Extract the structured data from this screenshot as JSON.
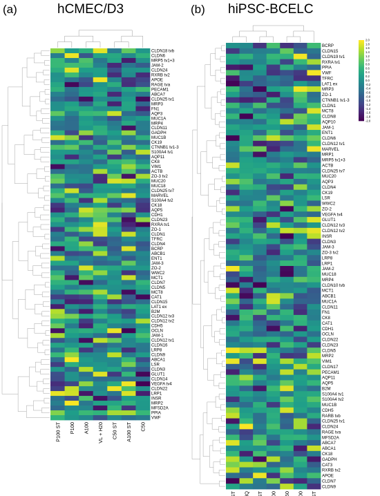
{
  "chart_data": [
    {
      "type": "heatmap",
      "panel_label": "(a)",
      "title": "hCMEC/D3",
      "columns": [
        "P100 ST",
        "P100",
        "A100",
        "VL + H20",
        "C50 ST",
        "A100 ST",
        "C50"
      ],
      "rows": [
        "CLDN18 tvb",
        "CLDN6",
        "MRP5 tv1+3",
        "JAM-2",
        "CLDN24",
        "RXRB tv2",
        "APOE",
        "RAGE tva",
        "PECAM1",
        "ABCA7",
        "CLDN25 tv1",
        "MRP3",
        "FN1",
        "AQP3",
        "MUC1A",
        "MRP4",
        "CLDN11",
        "GADPH",
        "MUC1B",
        "CK19",
        "CTNNB1 tv1-3",
        "S100A4 tv1",
        "AQP11",
        "CK8",
        "VIM1",
        "ACTB",
        "ZO-3 tv2",
        "MUC20",
        "MUC18",
        "CLDN25 tv7",
        "MARVEL",
        "S100A4 tv2",
        "CK18",
        "AQP5",
        "CDH1",
        "CLDN23",
        "RXRA tv1",
        "ZO-1",
        "CLDN1",
        "TFRC",
        "CLDN4",
        "BCRP",
        "ABCB1",
        "ENT1",
        "JAM-3",
        "ZO-2",
        "WWC2",
        "MCT1",
        "CLDN7",
        "CLDN5",
        "MCT8",
        "CAT1",
        "CLDN15",
        "LAT1 ex",
        "B2M",
        "CLDN12 tv3",
        "CLDN12 tv2",
        "CDH5",
        "OCLN",
        "JAM-1",
        "CLDN12 tv1",
        "CLDN16",
        "LRP8",
        "CLDN9",
        "ABCA1",
        "LSR",
        "CLDN3",
        "GLUT1",
        "CLDN14",
        "VEGFA tv4",
        "CLDN22",
        "LRP1",
        "INSR",
        "MRP2",
        "MFSD2A",
        "PPIA",
        "VWF"
      ],
      "value_range": [
        -2.0,
        2.0
      ]
    },
    {
      "type": "heatmap",
      "panel_label": "(b)",
      "title": "hiPSC-BCELC",
      "columns": [
        "C50 ST",
        "VL + MQ",
        "A100 ST",
        "A100",
        "C50",
        "P100",
        "P100 ST"
      ],
      "rows": [
        "BCRP",
        "CLDN15",
        "CLDN19 tv1",
        "RXRA tv1",
        "PPIA",
        "VWF",
        "TFRC",
        "LAT1 ex",
        "MRP3",
        "ZO-1",
        "CTNNB1 tv1-3",
        "CLDN1",
        "MCT8",
        "CLDN8",
        "AQP10",
        "JAM-1",
        "ENT1",
        "CLDN6",
        "CLDN12 tv1",
        "MARVEL",
        "MRP1",
        "MRP5 tv1+3",
        "ACTB",
        "CLDN25 tv7",
        "MUC20",
        "AQP3",
        "CLDN4",
        "CK19",
        "LSR",
        "WWC2",
        "ZO-2",
        "VEGFA tv4",
        "GLUT1",
        "CLDN12 tv3",
        "CLDN12 tv2",
        "INSR",
        "CLDN3",
        "JAM-3",
        "ZO-3 tv2",
        "LRP8",
        "LRP1",
        "JAM-2",
        "MUC18",
        "MRP4",
        "CLDN10 tvb",
        "MCT1",
        "ABCB1",
        "MUC1A",
        "CLDN11",
        "FN1",
        "CK8",
        "CAT1",
        "CDH1",
        "OCLN",
        "CLDN22",
        "CLDN23",
        "CLDN5",
        "MRP2",
        "VIM1",
        "CLDN17",
        "PECAM1",
        "AQP11",
        "AQP5",
        "B2M",
        "S100A4 tv1",
        "S100A4 tv2",
        "MUC1B",
        "CDH5",
        "RARB tvb",
        "CLDN25 tv1",
        "CLDN24",
        "RAGE tva",
        "MFSD2A",
        "ABCA7",
        "ABCA1",
        "CK18",
        "GADPH",
        "CAT3",
        "RXRB tv2",
        "APOE",
        "CLDN7",
        "CLDN9"
      ],
      "value_range": [
        -2.0,
        2.0
      ]
    }
  ],
  "colorbar": {
    "ticks": [
      "2.0",
      "1.8",
      "1.6",
      "1.4",
      "1.2",
      "1.0",
      "0.8",
      "0.6",
      "0.4",
      "0.2",
      "0.0",
      "-0.2",
      "-0.4",
      "-0.6",
      "-0.8",
      "-1.0",
      "-1.2",
      "-1.4",
      "-1.6",
      "-1.8",
      "-2.0"
    ]
  },
  "colors": {
    "low": "#440154",
    "mid": "#21918c",
    "high": "#fde725",
    "dendrogram": "#9a9a9a"
  }
}
